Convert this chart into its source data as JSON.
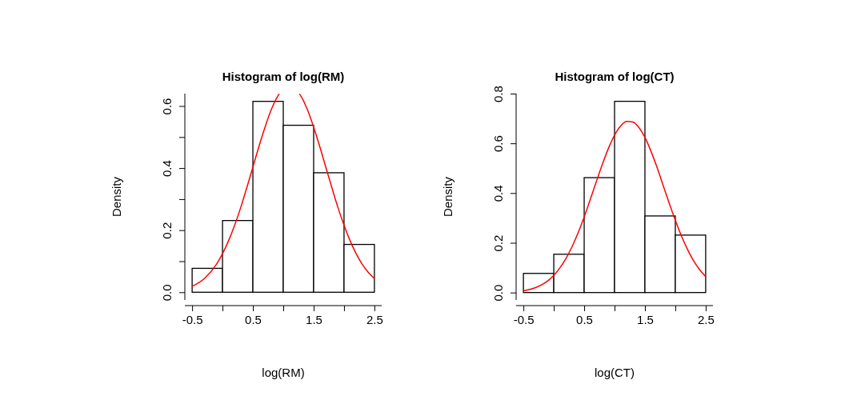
{
  "chart_data": [
    {
      "type": "histogram",
      "title": "Histogram of log(RM)",
      "xlabel": "log(RM)",
      "ylabel": "Density",
      "bins": [
        -0.5,
        0,
        0.5,
        1,
        1.5,
        2,
        2.5
      ],
      "xlim": [
        -0.62,
        2.62
      ],
      "ylim": [
        -0.025,
        0.64
      ],
      "xticks": [
        -0.5,
        0.5,
        1.5,
        2.5,
        {
          "value": 0,
          "label": null
        },
        {
          "value": 1,
          "label": null
        },
        {
          "value": 2,
          "label": null
        }
      ],
      "yticks": [
        {
          "value": 0,
          "label": "0.0"
        },
        0.2,
        0.4,
        0.6,
        {
          "value": 0.1,
          "label": null
        },
        {
          "value": 0.3,
          "label": null
        },
        {
          "value": 0.5,
          "label": null
        }
      ],
      "grid": false,
      "series": [
        {
          "color": "#ffffff",
          "values": [
            0.077,
            0.231,
            0.615,
            0.538,
            0.385,
            0.154
          ]
        },
        {
          "type": "line",
          "color": "#ff0000",
          "x": [
            -0.5,
            -0.3,
            -0.1,
            0,
            0.1,
            0.2,
            0.3,
            0.4,
            0.5,
            0.6,
            0.7,
            0.8,
            0.9,
            0.934,
            0.935,
            1.265,
            1.266,
            1.3,
            1.4,
            1.5,
            1.6,
            1.7,
            1.8,
            1.9,
            2,
            2.1,
            2.2,
            2.3,
            2.4,
            2.5
          ],
          "values": [
            0.019,
            0.044,
            0.09,
            0.124,
            0.166,
            0.216,
            0.273,
            0.337,
            0.403,
            0.47,
            0.532,
            0.587,
            0.629,
            0.639,
            null,
            null,
            0.639,
            0.629,
            0.587,
            0.532,
            0.47,
            0.403,
            0.337,
            0.273,
            0.216,
            0.166,
            0.124,
            0.09,
            0.064,
            0.044
          ]
        }
      ]
    },
    {
      "type": "histogram",
      "title": "Histogram of log(CT)",
      "xlabel": "log(CT)",
      "ylabel": "Density",
      "bins": [
        -0.5,
        0,
        0.5,
        1,
        1.5,
        2,
        2.5
      ],
      "xlim": [
        -0.62,
        2.62
      ],
      "ylim": [
        -0.03,
        0.8
      ],
      "xticks": [
        -0.5,
        0.5,
        1.5,
        2.5,
        {
          "value": 0,
          "label": null
        },
        {
          "value": 1,
          "label": null
        },
        {
          "value": 2,
          "label": null
        }
      ],
      "yticks": [
        {
          "value": 0,
          "label": "0.0"
        },
        0.2,
        0.4,
        0.6,
        0.8
      ],
      "grid": false,
      "series": [
        {
          "color": "#ffffff",
          "values": [
            0.077,
            0.154,
            0.462,
            0.769,
            0.308,
            0.231
          ]
        },
        {
          "type": "line",
          "color": "#ff0000",
          "x": [
            -0.5,
            -0.3,
            -0.1,
            0,
            0.1,
            0.2,
            0.3,
            0.4,
            0.5,
            0.6,
            0.7,
            0.8,
            0.9,
            1,
            1.1,
            1.2,
            1.3,
            1.4,
            1.5,
            1.6,
            1.7,
            1.8,
            1.9,
            2,
            2.1,
            2.2,
            2.3,
            2.4,
            2.5
          ],
          "values": [
            0.007,
            0.02,
            0.047,
            0.069,
            0.099,
            0.137,
            0.184,
            0.24,
            0.304,
            0.374,
            0.446,
            0.516,
            0.58,
            0.633,
            0.67,
            0.688,
            0.686,
            0.664,
            0.624,
            0.568,
            0.503,
            0.431,
            0.359,
            0.291,
            0.228,
            0.174,
            0.128,
            0.092,
            0.064
          ]
        }
      ]
    }
  ]
}
